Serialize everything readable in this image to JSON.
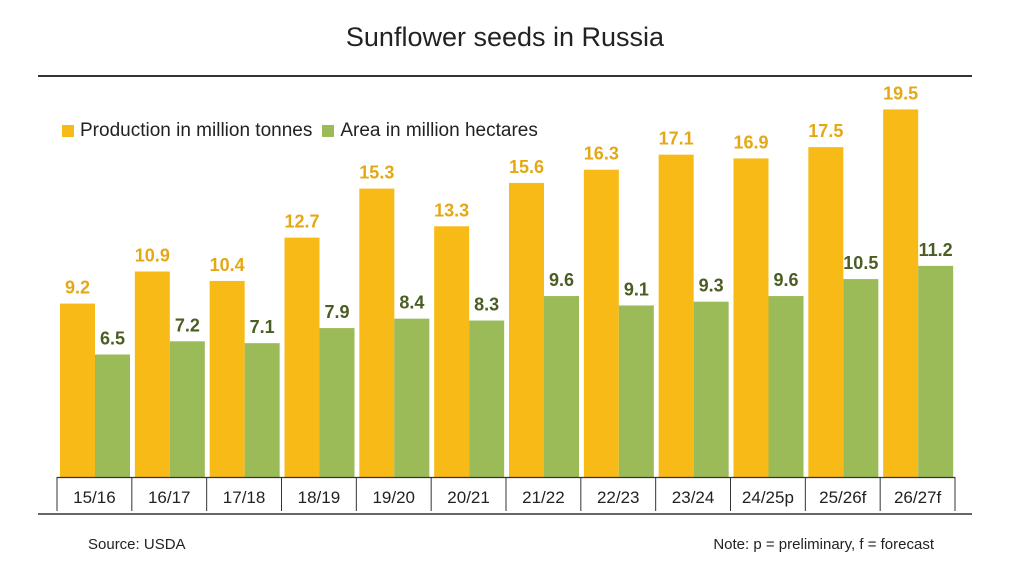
{
  "chart_data": {
    "type": "bar",
    "title": "Sunflower seeds in Russia",
    "categories": [
      "15/16",
      "16/17",
      "17/18",
      "18/19",
      "19/20",
      "20/21",
      "21/22",
      "22/23",
      "23/24",
      "24/25p",
      "25/26f",
      "26/27f"
    ],
    "series": [
      {
        "name": "Production in million tonnes",
        "color": "#F7BA17",
        "label_color": "#E5A815",
        "values": [
          9.2,
          10.9,
          10.4,
          12.7,
          15.3,
          13.3,
          15.6,
          16.3,
          17.1,
          16.9,
          17.5,
          19.5
        ]
      },
      {
        "name": "Area in million hectares",
        "color": "#9BBB59",
        "label_color": "#4A5E23",
        "values": [
          6.5,
          7.2,
          7.1,
          7.9,
          8.4,
          8.3,
          9.6,
          9.1,
          9.3,
          9.6,
          10.5,
          11.2
        ]
      }
    ],
    "ylim": [
      0,
      20
    ],
    "grid": false,
    "legend": "top-left",
    "data_labels": true
  },
  "source": "Source: USDA",
  "note": "Note: p = preliminary, f = forecast"
}
